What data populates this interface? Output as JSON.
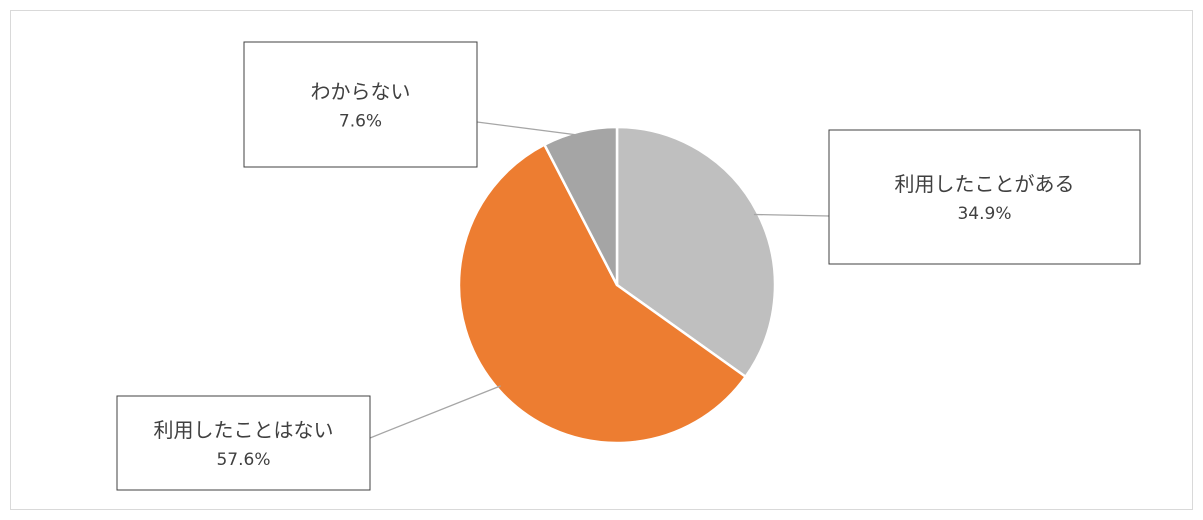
{
  "chart_data": {
    "type": "pie",
    "slices": [
      {
        "label": "利用したことがある",
        "value": 34.9,
        "display": "34.9%",
        "color": "#bfbfbf"
      },
      {
        "label": "利用したことはない",
        "value": 57.6,
        "display": "57.6%",
        "color": "#ed7d31"
      },
      {
        "label": "わからない",
        "value": 7.6,
        "display": "7.6%",
        "color": "#a5a5a5"
      }
    ],
    "start_angle": "12 o'clock",
    "direction": "clockwise",
    "legend": "none",
    "data_labels": "callout boxes with leader lines"
  }
}
